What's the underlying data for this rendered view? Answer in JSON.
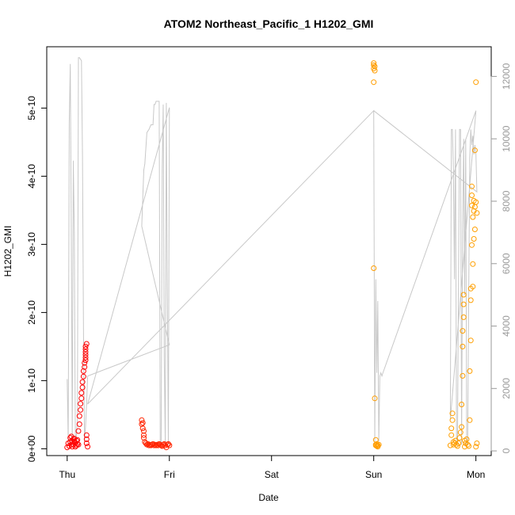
{
  "chart_data": {
    "type": "scatter",
    "title": "ATOM2 Northeast_Pacific_1 H1202_GMI",
    "xlabel": "Date",
    "ylabel": "H1202_GMI",
    "x_ticks": [
      "Thu",
      "Fri",
      "Sat",
      "Sun",
      "Mon"
    ],
    "x_range_days": [
      -0.2,
      4.15
    ],
    "ylim": [
      -1e-11,
      5.9e-10
    ],
    "y_ticks": [
      "0e+00",
      "1e-10",
      "2e-10",
      "3e-10",
      "4e-10",
      "5e-10"
    ],
    "y2lim": [
      -150,
      12950
    ],
    "y2_ticks": [
      "0",
      "2000",
      "4000",
      "6000",
      "8000",
      "10000",
      "12000"
    ],
    "grid": false,
    "colors": {
      "series_thu": "#ff0000",
      "series_fri": "#ff2400",
      "series_sun": "#ff9d00",
      "series_mon": "#ff9f00",
      "altitude_line": "#c8c8c8"
    },
    "series": [
      {
        "color": "#ff0000",
        "x": [
          0.0,
          0.01,
          0.02,
          0.03,
          0.03,
          0.04,
          0.04,
          0.05,
          0.05,
          0.06,
          0.06,
          0.07,
          0.07,
          0.08,
          0.08,
          0.09,
          0.09,
          0.1,
          0.1,
          0.11,
          0.11,
          0.12,
          0.12,
          0.13,
          0.13,
          0.14,
          0.14,
          0.15,
          0.15,
          0.16,
          0.16,
          0.17,
          0.17,
          0.18,
          0.18,
          0.18,
          0.18,
          0.18,
          0.18,
          0.19,
          0.19,
          0.19,
          0.19,
          0.2
        ],
        "y": [
          2e-12,
          8e-12,
          4e-12,
          1e-11,
          1.6e-11,
          6e-12,
          1.8e-11,
          1e-11,
          3e-12,
          1.4e-11,
          6e-12,
          1.1e-11,
          1.5e-11,
          9e-12,
          3e-12,
          1.2e-11,
          5e-12,
          1.3e-11,
          7e-12,
          6e-12,
          2.6e-11,
          3.6e-11,
          4.8e-11,
          5.7e-11,
          6.6e-11,
          7.4e-11,
          8.2e-11,
          9e-11,
          9.8e-11,
          1.06e-10,
          1.14e-10,
          1.2e-10,
          1.26e-10,
          1.3e-10,
          1.34e-10,
          1.38e-10,
          1.42e-10,
          1.46e-10,
          1.5e-10,
          1.54e-10,
          2e-11,
          1.4e-11,
          8e-12,
          3e-12
        ]
      },
      {
        "color": "#ff2400",
        "x": [
          0.73,
          0.73,
          0.74,
          0.74,
          0.75,
          0.75,
          0.75,
          0.76,
          0.77,
          0.78,
          0.79,
          0.8,
          0.81,
          0.82,
          0.83,
          0.84,
          0.85,
          0.86,
          0.87,
          0.88,
          0.89,
          0.9,
          0.91,
          0.92,
          0.93,
          0.94,
          0.95,
          0.96,
          0.97,
          0.98,
          0.99,
          1.0
        ],
        "y": [
          4.2e-11,
          3.6e-11,
          3.8e-11,
          3e-11,
          2.6e-11,
          2e-11,
          1.6e-11,
          1e-11,
          8e-12,
          6e-12,
          7e-12,
          5e-12,
          6e-12,
          5e-12,
          6e-12,
          7e-12,
          5e-12,
          6e-12,
          5e-12,
          6e-12,
          5e-12,
          7e-12,
          6e-12,
          5e-12,
          4e-12,
          6e-12,
          7e-12,
          5e-12,
          2e-12,
          6e-12,
          7e-12,
          5e-12
        ]
      },
      {
        "color": "#ff9d00",
        "x": [
          3.0,
          3.0,
          3.0,
          3.01,
          3.01,
          3.0,
          3.0,
          3.01,
          3.02,
          3.02,
          3.02,
          3.03,
          3.03,
          3.04,
          3.04,
          3.05
        ],
        "y": [
          5.66e-10,
          5.63e-10,
          5.58e-10,
          5.61e-10,
          5.55e-10,
          5.38e-10,
          2.65e-10,
          7.4e-11,
          1.3e-11,
          5e-12,
          6e-12,
          4e-12,
          7e-12,
          5e-12,
          3e-12,
          6e-12
        ]
      },
      {
        "color": "#ff9f00",
        "x": [
          3.75,
          3.76,
          3.76,
          3.77,
          3.77,
          3.78,
          3.78,
          3.79,
          3.8,
          3.81,
          3.82,
          3.83,
          3.84,
          3.85,
          3.86,
          3.86,
          3.87,
          3.87,
          3.87,
          3.88,
          3.88,
          3.88,
          3.89,
          3.89,
          3.9,
          3.91,
          3.92,
          3.93,
          3.94,
          3.94,
          3.95,
          3.95,
          3.95,
          3.96,
          3.96,
          3.96,
          3.96,
          3.97,
          3.97,
          3.97,
          3.98,
          3.98,
          3.98,
          3.99,
          3.99,
          3.99,
          4.0,
          4.0,
          4.01,
          4.01,
          4.0
        ],
        "y": [
          5e-12,
          2e-11,
          3e-11,
          4.2e-11,
          5.2e-11,
          1e-11,
          6e-12,
          8e-12,
          1.2e-11,
          6e-12,
          4e-12,
          8e-12,
          1.6e-11,
          2.4e-11,
          3.2e-11,
          6.5e-11,
          1.07e-10,
          1.5e-10,
          1.73e-10,
          1.93e-10,
          2.12e-10,
          2.26e-10,
          1.2e-11,
          3e-12,
          8e-12,
          1.4e-11,
          6e-12,
          4e-12,
          4.2e-11,
          1.14e-10,
          1.59e-10,
          2.18e-10,
          2.35e-10,
          2.99e-10,
          3.57e-10,
          3.72e-10,
          3.85e-10,
          2.38e-10,
          2.71e-10,
          3.4e-10,
          3.08e-10,
          3.49e-10,
          3.64e-10,
          3.22e-10,
          3.55e-10,
          4.38e-10,
          5.38e-10,
          3.62e-10,
          3.46e-10,
          8e-12,
          3e-12
        ]
      }
    ],
    "altitude_line": {
      "x": [
        0.0,
        0.01,
        0.02,
        0.03,
        0.04,
        0.05,
        0.06,
        0.07,
        0.08,
        0.09,
        0.1,
        0.11,
        0.12,
        0.13,
        0.14,
        0.15,
        0.16,
        0.17,
        0.18,
        0.19,
        0.2,
        1.0,
        0.73,
        0.75,
        0.76,
        0.78,
        0.8,
        0.82,
        0.84,
        0.85,
        0.86,
        0.87,
        0.88,
        0.89,
        0.9,
        0.91,
        0.92,
        0.93,
        0.94,
        0.95,
        0.96,
        0.97,
        0.98,
        0.99,
        1.0,
        0.2,
        3.0,
        3.01,
        3.02,
        3.03,
        3.04,
        3.05,
        3.06,
        3.07,
        3.08,
        3.09,
        4.0,
        3.75,
        3.76,
        3.77,
        3.78,
        3.79,
        3.8,
        3.81,
        3.82,
        3.83,
        3.84,
        3.85,
        3.86,
        3.87,
        3.88,
        3.89,
        3.9,
        3.91,
        3.92,
        3.93,
        3.94,
        3.95,
        3.96,
        3.97,
        3.98,
        3.99,
        4.0,
        4.01,
        3.0
      ],
      "y": [
        2300,
        300,
        10500,
        12400,
        7000,
        300,
        9300,
        7000,
        300,
        500,
        1000,
        12600,
        12600,
        12550,
        12500,
        9500,
        3700,
        300,
        800,
        1500,
        2400,
        3400,
        7200,
        9000,
        9200,
        10200,
        10300,
        10450,
        10450,
        11100,
        11100,
        11200,
        11200,
        11200,
        11200,
        300,
        200,
        9000,
        11100,
        3000,
        200,
        11150,
        5000,
        200,
        11000,
        1500,
        10900,
        300,
        5500,
        2500,
        4800,
        300,
        2400,
        2500,
        2400,
        2500,
        10900,
        1000,
        10300,
        10300,
        9000,
        5500,
        10300,
        300,
        200,
        5500,
        10300,
        10300,
        200,
        7000,
        10000,
        5000,
        10000,
        200,
        300,
        5000,
        9400,
        10300,
        9800,
        10100,
        9500,
        9800,
        9500,
        8300,
        10900
      ]
    }
  }
}
